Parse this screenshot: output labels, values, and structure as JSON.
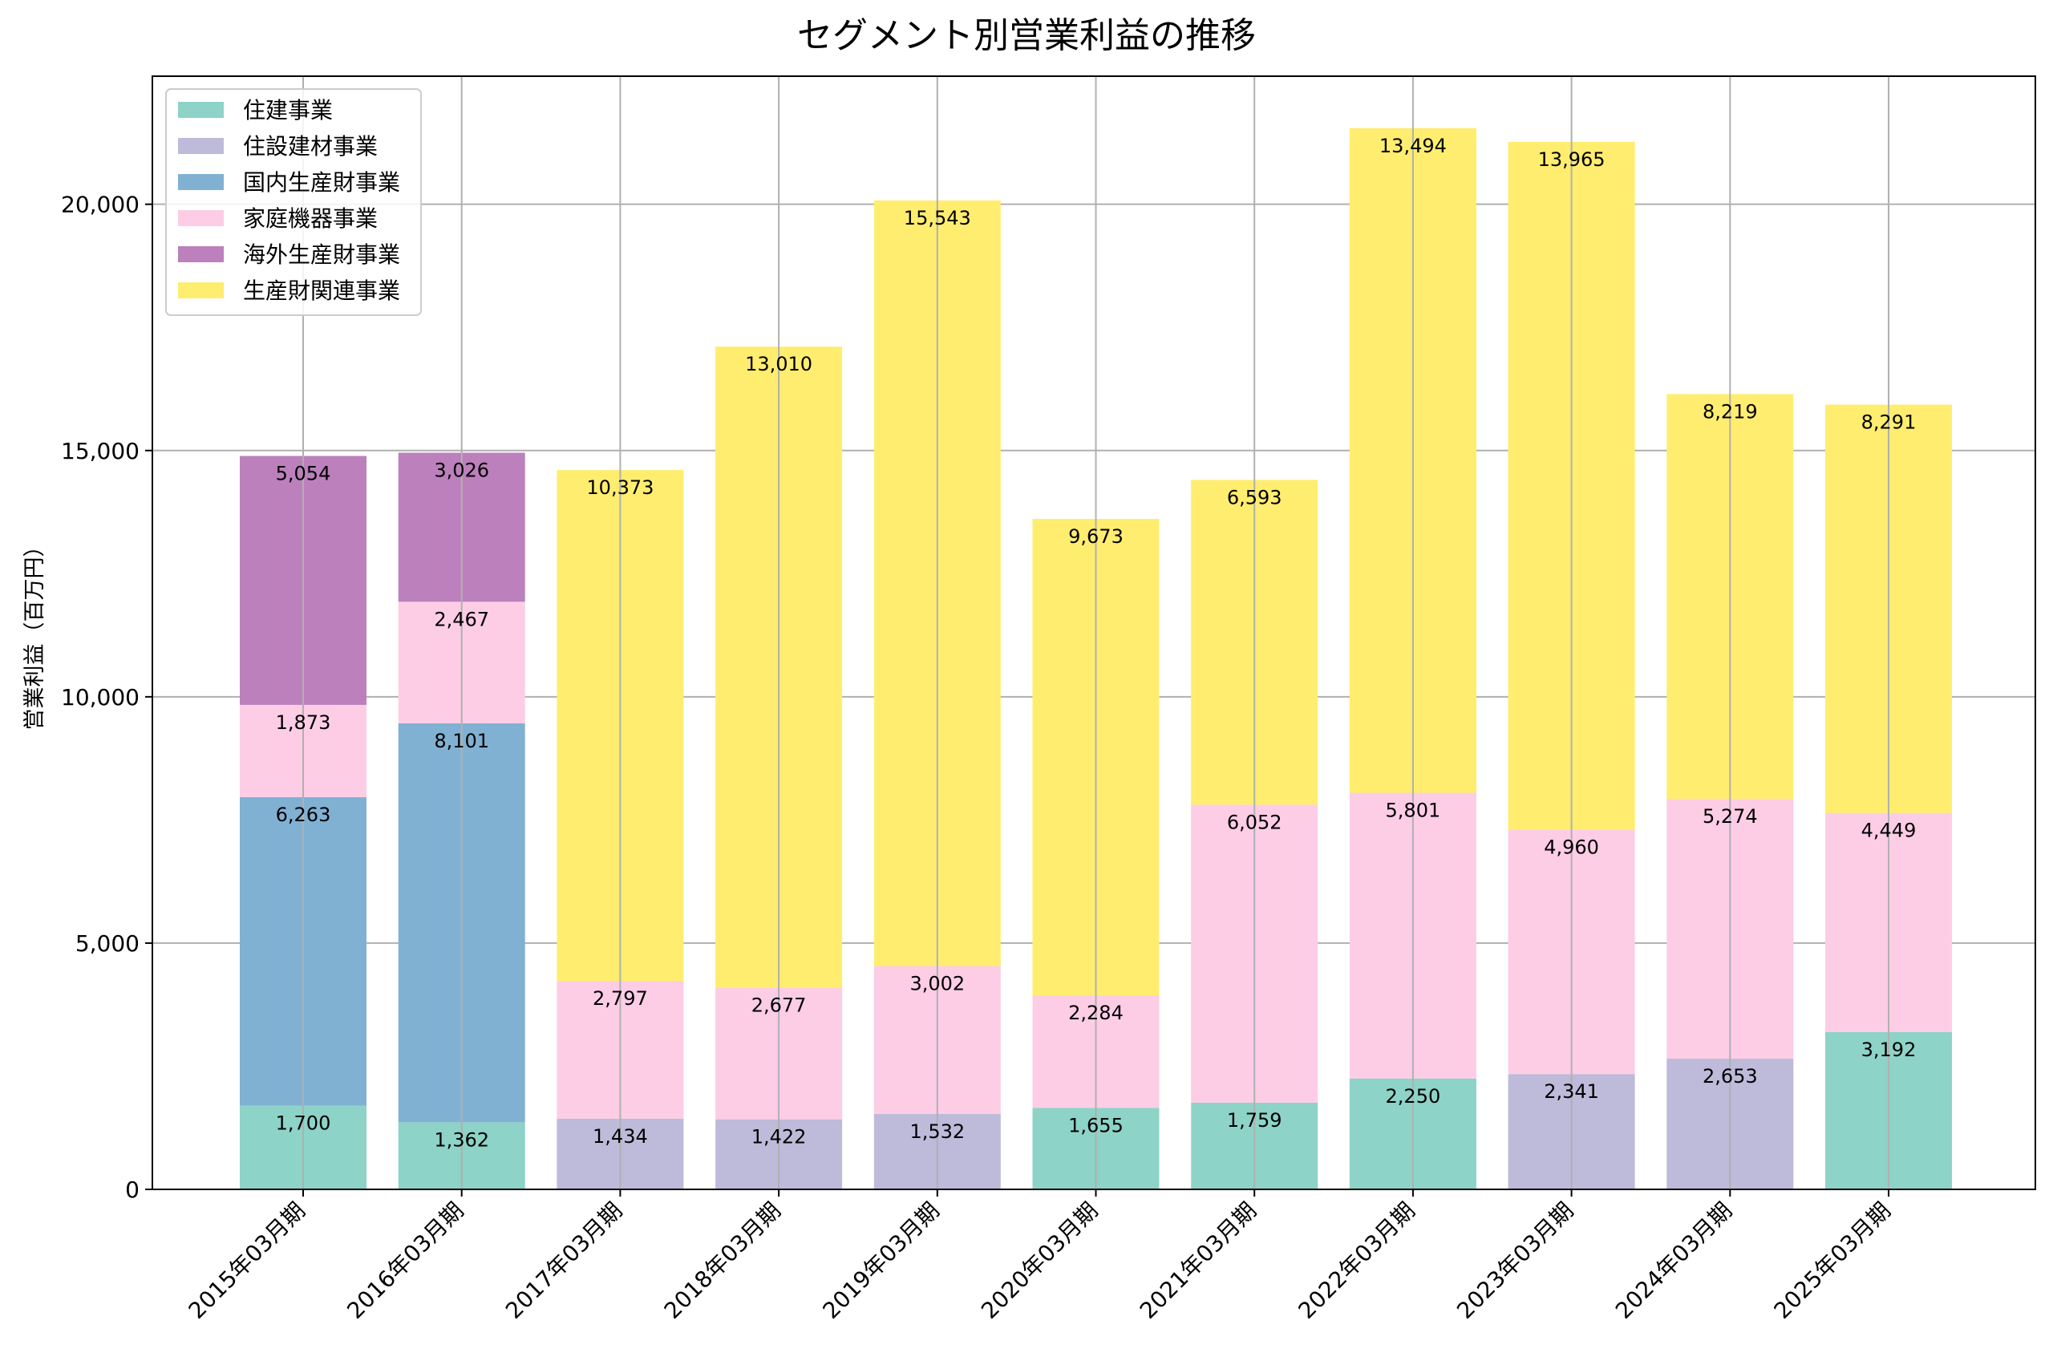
{
  "chart_data": {
    "type": "bar",
    "stacked": true,
    "title": "セグメント別営業利益の推移",
    "xlabel": "",
    "ylabel": "営業利益（百万円）",
    "ylim": [
      0,
      22600
    ],
    "yticks": [
      0,
      5000,
      10000,
      15000,
      20000
    ],
    "ytick_labels": [
      "0",
      "5,000",
      "10,000",
      "15,000",
      "20,000"
    ],
    "grid": true,
    "legend_position": "top-left",
    "categories": [
      "2015年03月期",
      "2016年03月期",
      "2017年03月期",
      "2018年03月期",
      "2019年03月期",
      "2020年03月期",
      "2021年03月期",
      "2022年03月期",
      "2023年03月期",
      "2024年03月期",
      "2025年03月期"
    ],
    "series": [
      {
        "name": "住建事業",
        "color": "#8dd3c7",
        "values": [
          1700,
          1362,
          null,
          null,
          null,
          1655,
          1759,
          2250,
          null,
          null,
          3192
        ]
      },
      {
        "name": "住設建材事業",
        "color": "#bebada",
        "values": [
          null,
          null,
          1434,
          1422,
          1532,
          null,
          null,
          null,
          2341,
          2653,
          null
        ]
      },
      {
        "name": "国内生産財事業",
        "color": "#80b1d3",
        "values": [
          6263,
          8101,
          null,
          null,
          null,
          null,
          null,
          null,
          null,
          null,
          null
        ]
      },
      {
        "name": "家庭機器事業",
        "color": "#fccde5",
        "values": [
          1873,
          2467,
          2797,
          2677,
          3002,
          2284,
          6052,
          5801,
          4960,
          5274,
          4449
        ]
      },
      {
        "name": "海外生産財事業",
        "color": "#bc80bd",
        "values": [
          5054,
          3026,
          null,
          null,
          null,
          null,
          null,
          null,
          null,
          null,
          null
        ]
      },
      {
        "name": "生産財関連事業",
        "color": "#ffed6f",
        "values": [
          null,
          null,
          10373,
          13010,
          15543,
          9673,
          6593,
          13494,
          13965,
          8219,
          8291
        ]
      }
    ]
  }
}
